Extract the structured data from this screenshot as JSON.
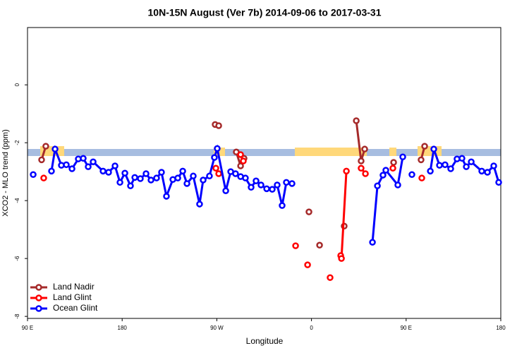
{
  "chart_data": {
    "type": "line",
    "title": "10N-15N August (Ver 7b)   2014-09-06 to 2017-03-31",
    "x_label": "Longitude",
    "y_label": "XCO2 - MLO trend (ppm)",
    "xlim": [
      90,
      540
    ],
    "ylim": [
      -8.07,
      1.98
    ],
    "xticks": [
      {
        "value": 90,
        "label": "90 E"
      },
      180,
      {
        "value": 270,
        "label": "90 W"
      },
      {
        "value": 360,
        "label": "0"
      },
      {
        "value": 450,
        "label": "90 E"
      },
      {
        "value": 540,
        "label": "180"
      }
    ],
    "yticks": [
      0,
      -2,
      -4,
      -6,
      -8
    ],
    "legend": "bottom-left",
    "series": [
      {
        "name": "Land Nadir",
        "color": "#a52a2a",
        "x": [
          103.4,
          107.4,
          null,
          268.4,
          271.8,
          null,
          288.5,
          292.6,
          295.9,
          null,
          357.6,
          null,
          367.7,
          null,
          391.1,
          null,
          402.6,
          407.2,
          410.6,
          null,
          438.1,
          null,
          464.2,
          467.6
        ],
        "values": [
          -2.59,
          -2.12,
          null,
          -1.37,
          -1.41,
          null,
          -2.32,
          -2.8,
          -2.54,
          null,
          -4.39,
          null,
          -5.54,
          null,
          -4.88,
          null,
          -1.24,
          -2.63,
          -2.22,
          null,
          -2.68,
          null,
          -2.59,
          -2.12
        ]
      },
      {
        "name": "Land Glint",
        "color": "#ff0000",
        "x": [
          105.4,
          null,
          269.1,
          271.8,
          null,
          292.6,
          295.2,
          null,
          344.9,
          null,
          356.3,
          null,
          377.7,
          null,
          387.8,
          388.5,
          393.2,
          null,
          407.2,
          411.3,
          null,
          437.4,
          null,
          464.9
        ],
        "values": [
          -3.22,
          null,
          -2.88,
          -3.07,
          null,
          -2.41,
          -2.63,
          null,
          -5.56,
          null,
          -6.22,
          null,
          -6.66,
          null,
          -5.9,
          -6.0,
          -2.98,
          null,
          -2.88,
          -3.07,
          null,
          -2.88,
          null,
          -3.22
        ]
      },
      {
        "name": "Ocean Glint",
        "color": "#0000ff",
        "x": [
          95.4,
          null,
          112.8,
          116.2,
          122.2,
          126.9,
          132.3,
          138.3,
          143.0,
          147.7,
          152.4,
          161.8,
          167.1,
          173.2,
          177.9,
          182.6,
          187.9,
          192.0,
          197.3,
          202.7,
          207.4,
          212.7,
          217.4,
          222.1,
          228.2,
          232.9,
          237.6,
          241.6,
          247.6,
          253.6,
          257.0,
          263.0,
          267.7,
          270.4,
          278.5,
          283.2,
          287.8,
          292.6,
          297.2,
          302.6,
          307.3,
          312.0,
          317.4,
          322.7,
          327.4,
          332.1,
          336.1,
          341.5,
          null,
          418.0,
          422.7,
          428.0,
          430.7,
          442.1,
          446.8,
          null,
          455.5,
          null,
          473.0,
          476.3,
          481.7,
          487.0,
          492.4,
          498.4,
          503.1,
          507.2,
          511.9,
          521.9,
          527.3,
          533.3,
          538.0
        ],
        "values": [
          -3.1,
          null,
          -2.98,
          -2.22,
          -2.78,
          -2.76,
          -2.9,
          -2.56,
          -2.54,
          -2.83,
          -2.66,
          -2.98,
          -3.02,
          -2.8,
          -3.37,
          -3.05,
          -3.49,
          -3.2,
          -3.24,
          -3.07,
          -3.29,
          -3.22,
          -3.02,
          -3.85,
          -3.27,
          -3.22,
          -2.98,
          -3.41,
          -3.15,
          -4.12,
          -3.29,
          -3.15,
          -2.51,
          -2.2,
          -3.66,
          -3.0,
          -3.07,
          -3.17,
          -3.22,
          -3.54,
          -3.32,
          -3.46,
          -3.59,
          -3.61,
          -3.46,
          -4.17,
          -3.37,
          -3.41,
          null,
          -5.44,
          -3.49,
          -3.12,
          -2.95,
          -3.46,
          -2.49,
          null,
          -3.1,
          null,
          -2.98,
          -2.22,
          -2.78,
          -2.76,
          -2.9,
          -2.56,
          -2.54,
          -2.83,
          -2.66,
          -2.98,
          -3.02,
          -2.8,
          -3.37
        ]
      }
    ]
  }
}
